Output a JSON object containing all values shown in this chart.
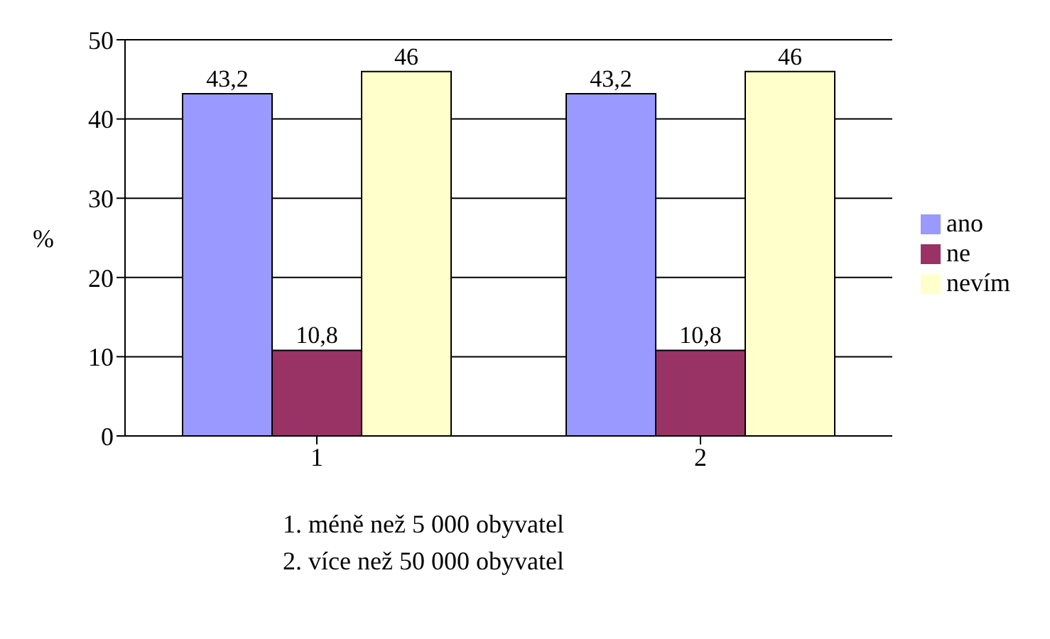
{
  "chart_data": {
    "type": "bar",
    "categories": [
      "1",
      "2"
    ],
    "series": [
      {
        "name": "ano",
        "color": "#9999ff",
        "values": [
          43.2,
          43.2
        ],
        "value_labels": [
          "43,2",
          "43,2"
        ]
      },
      {
        "name": "ne",
        "color": "#993366",
        "values": [
          10.8,
          10.8
        ],
        "value_labels": [
          "10,8",
          "10,8"
        ]
      },
      {
        "name": "nevím",
        "color": "#ffffcc",
        "values": [
          46,
          46
        ],
        "value_labels": [
          "46",
          "46"
        ]
      }
    ],
    "ylabel": "%",
    "ylim": [
      0,
      50
    ],
    "yticks": [
      0,
      10,
      20,
      30,
      40,
      50
    ],
    "grid": "y",
    "legend": "right",
    "annotations": [
      "1. méně než 5 000 obyvatel",
      "2. více než 50 000 obyvatel"
    ]
  }
}
